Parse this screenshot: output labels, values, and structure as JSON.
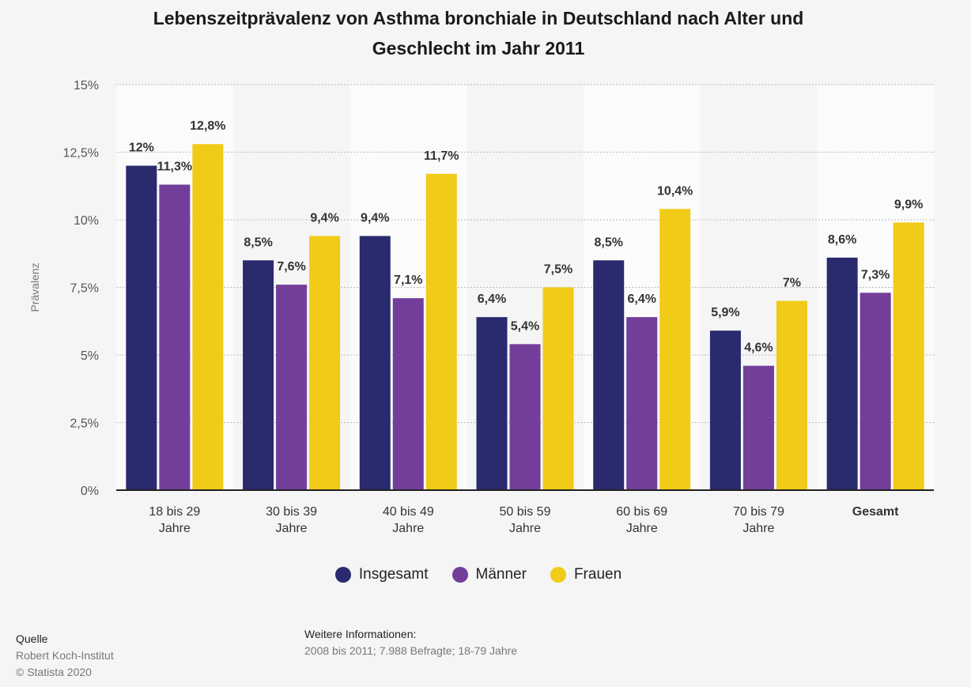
{
  "chart_data": {
    "type": "bar",
    "title_lines": [
      "Lebenszeitprävalenz von Asthma bronchiale in Deutschland nach Alter und",
      "Geschlecht im Jahr 2011"
    ],
    "ylabel": "Prävalenz",
    "xlabel": "",
    "ylim": [
      0,
      15
    ],
    "yticks": [
      {
        "value": 0,
        "label": "0%"
      },
      {
        "value": 2.5,
        "label": "2,5%"
      },
      {
        "value": 5,
        "label": "5%"
      },
      {
        "value": 7.5,
        "label": "7,5%"
      },
      {
        "value": 10,
        "label": "10%"
      },
      {
        "value": 12.5,
        "label": "12,5%"
      },
      {
        "value": 15,
        "label": "15%"
      }
    ],
    "grid": true,
    "categories": [
      {
        "lines": [
          "18 bis 29",
          "Jahre"
        ],
        "bold": false
      },
      {
        "lines": [
          "30 bis 39",
          "Jahre"
        ],
        "bold": false
      },
      {
        "lines": [
          "40 bis 49",
          "Jahre"
        ],
        "bold": false
      },
      {
        "lines": [
          "50 bis 59",
          "Jahre"
        ],
        "bold": false
      },
      {
        "lines": [
          "60 bis 69",
          "Jahre"
        ],
        "bold": false
      },
      {
        "lines": [
          "70 bis 79",
          "Jahre"
        ],
        "bold": false
      },
      {
        "lines": [
          "Gesamt"
        ],
        "bold": true
      }
    ],
    "series": [
      {
        "name": "Insgesamt",
        "color": "#2a2a6e",
        "values": [
          12,
          8.5,
          9.4,
          6.4,
          8.5,
          5.9,
          8.6
        ],
        "labels": [
          "12%",
          "8,5%",
          "9,4%",
          "6,4%",
          "8,5%",
          "5,9%",
          "8,6%"
        ]
      },
      {
        "name": "Männer",
        "color": "#723e9a",
        "values": [
          11.3,
          7.6,
          7.1,
          5.4,
          6.4,
          4.6,
          7.3
        ],
        "labels": [
          "11,3%",
          "7,6%",
          "7,1%",
          "5,4%",
          "6,4%",
          "4,6%",
          "7,3%"
        ]
      },
      {
        "name": "Frauen",
        "color": "#f0cb17",
        "values": [
          12.8,
          9.4,
          11.7,
          7.5,
          10.4,
          7,
          9.9
        ],
        "labels": [
          "12,8%",
          "9,4%",
          "11,7%",
          "7,5%",
          "10,4%",
          "7%",
          "9,9%"
        ]
      }
    ]
  },
  "footer": {
    "source_heading": "Quelle",
    "source": "Robert Koch-Institut",
    "copyright": "© Statista 2020",
    "info_heading": "Weitere Informationen:",
    "info": "2008 bis 2011; 7.988 Befragte; 18-79 Jahre"
  }
}
